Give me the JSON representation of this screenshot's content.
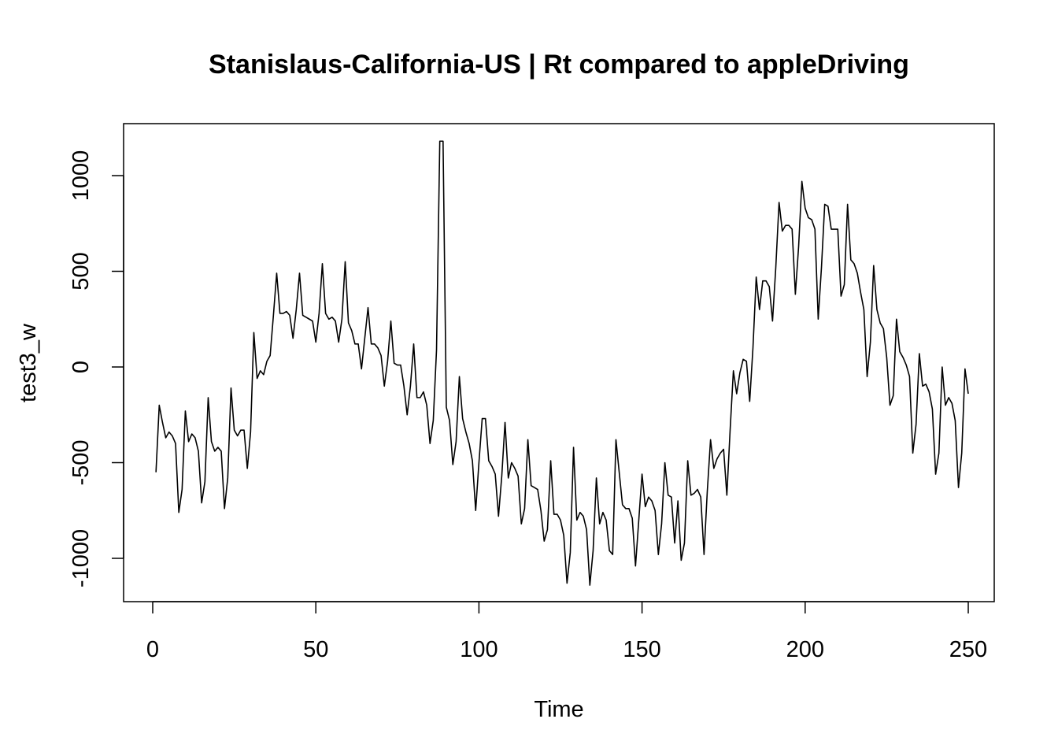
{
  "chart_data": {
    "type": "line",
    "title": "Stanislaus-California-US | Rt compared to appleDriving",
    "xlabel": "Time",
    "ylabel": "test3_w",
    "xlim": [
      1,
      248
    ],
    "ylim": [
      -1150,
      1180
    ],
    "x_ticks": [
      0,
      50,
      100,
      150,
      200,
      250
    ],
    "y_ticks": [
      -1000,
      -500,
      0,
      500,
      1000
    ],
    "x_tick_labels": [
      "0",
      "50",
      "100",
      "150",
      "200",
      "250"
    ],
    "y_tick_labels": [
      "-1000",
      "-500",
      "0",
      "500",
      "1000"
    ],
    "grid": false,
    "legend": "none",
    "line_color": "#000000",
    "series": [
      {
        "x_start": 1,
        "x_step": 1,
        "values": [
          -550,
          -200,
          -290,
          -370,
          -340,
          -360,
          -400,
          -760,
          -640,
          -230,
          -390,
          -350,
          -370,
          -440,
          -710,
          -600,
          -160,
          -390,
          -440,
          -420,
          -440,
          -740,
          -580,
          -110,
          -330,
          -360,
          -330,
          -330,
          -530,
          -340,
          180,
          -60,
          -20,
          -40,
          30,
          60,
          270,
          490,
          280,
          280,
          290,
          270,
          150,
          300,
          490,
          270,
          260,
          250,
          240,
          130,
          280,
          540,
          280,
          250,
          260,
          240,
          130,
          250,
          550,
          230,
          190,
          120,
          120,
          -10,
          150,
          310,
          120,
          120,
          100,
          60,
          -100,
          30,
          240,
          20,
          10,
          10,
          -100,
          -250,
          -100,
          120,
          -160,
          -160,
          -130,
          -200,
          -400,
          -280,
          90,
          1180,
          1180,
          -210,
          -280,
          -510,
          -390,
          -50,
          -270,
          -340,
          -400,
          -490,
          -750,
          -500,
          -270,
          -270,
          -490,
          -520,
          -560,
          -780,
          -570,
          -290,
          -580,
          -500,
          -530,
          -570,
          -820,
          -740,
          -380,
          -620,
          -630,
          -640,
          -750,
          -910,
          -850,
          -490,
          -770,
          -770,
          -800,
          -880,
          -1130,
          -970,
          -420,
          -800,
          -760,
          -780,
          -850,
          -1140,
          -960,
          -580,
          -820,
          -760,
          -800,
          -960,
          -980,
          -380,
          -550,
          -720,
          -740,
          -740,
          -790,
          -1040,
          -800,
          -560,
          -730,
          -680,
          -700,
          -750,
          -980,
          -820,
          -500,
          -670,
          -680,
          -920,
          -700,
          -1010,
          -920,
          -490,
          -670,
          -660,
          -640,
          -680,
          -980,
          -650,
          -380,
          -530,
          -480,
          -450,
          -430,
          -670,
          -330,
          -20,
          -140,
          -30,
          40,
          30,
          -180,
          100,
          470,
          300,
          450,
          450,
          420,
          240,
          520,
          860,
          710,
          740,
          740,
          720,
          380,
          630,
          970,
          830,
          780,
          770,
          720,
          250,
          520,
          850,
          840,
          720,
          720,
          720,
          370,
          430,
          850,
          560,
          540,
          490,
          390,
          300,
          -50,
          130,
          530,
          300,
          230,
          200,
          50,
          -200,
          -150,
          250,
          80,
          50,
          10,
          -50,
          -450,
          -300,
          70,
          -100,
          -90,
          -130,
          -220,
          -560,
          -450,
          0,
          -200,
          -160,
          -190,
          -280,
          -630,
          -450,
          -10,
          -140
        ]
      }
    ]
  }
}
